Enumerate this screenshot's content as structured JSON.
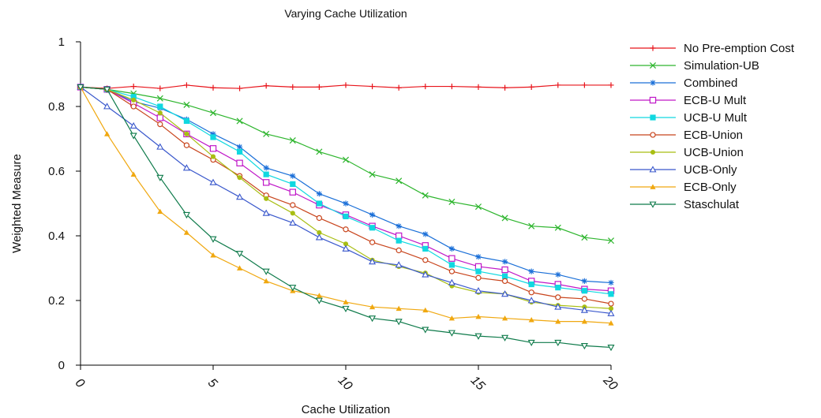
{
  "chart_data": {
    "type": "line",
    "title": "Varying Cache Utilization",
    "xlabel": "Cache Utilization",
    "ylabel": "Weighted Measure",
    "xlim": [
      0,
      20
    ],
    "ylim": [
      0,
      1
    ],
    "x_ticks": [
      "0",
      "5",
      "10",
      "15",
      "20"
    ],
    "y_ticks": [
      "0",
      "0.2",
      "0.4",
      "0.6",
      "0.8",
      "1"
    ],
    "grid": false,
    "legend_position": "top-right",
    "x": [
      0,
      1,
      2,
      3,
      4,
      5,
      6,
      7,
      8,
      9,
      10,
      11,
      12,
      13,
      14,
      15,
      16,
      17,
      18,
      19,
      20
    ],
    "series": [
      {
        "name": "No Pre-emption Cost",
        "color": "#e8141b",
        "marker": "plus",
        "values": [
          0.86,
          0.856,
          0.862,
          0.856,
          0.866,
          0.858,
          0.856,
          0.864,
          0.86,
          0.86,
          0.866,
          0.862,
          0.858,
          0.862,
          0.862,
          0.86,
          0.858,
          0.86,
          0.866,
          0.866,
          0.866
        ]
      },
      {
        "name": "Simulation-UB",
        "color": "#2db52d",
        "marker": "x",
        "values": [
          0.86,
          0.853,
          0.84,
          0.825,
          0.805,
          0.78,
          0.755,
          0.715,
          0.695,
          0.66,
          0.635,
          0.59,
          0.57,
          0.525,
          0.505,
          0.49,
          0.455,
          0.43,
          0.425,
          0.395,
          0.385
        ]
      },
      {
        "name": "Combined",
        "color": "#1a6fd8",
        "marker": "star",
        "values": [
          0.86,
          0.853,
          0.815,
          0.795,
          0.76,
          0.715,
          0.675,
          0.61,
          0.585,
          0.53,
          0.5,
          0.465,
          0.43,
          0.405,
          0.36,
          0.335,
          0.32,
          0.29,
          0.28,
          0.26,
          0.255
        ]
      },
      {
        "name": "ECB-U Mult",
        "color": "#c018c8",
        "marker": "open-square",
        "values": [
          0.86,
          0.853,
          0.81,
          0.765,
          0.715,
          0.67,
          0.625,
          0.565,
          0.535,
          0.495,
          0.465,
          0.43,
          0.4,
          0.37,
          0.33,
          0.305,
          0.295,
          0.26,
          0.25,
          0.235,
          0.23
        ]
      },
      {
        "name": "UCB-U Mult",
        "color": "#10d8e0",
        "marker": "filled-square",
        "values": [
          0.86,
          0.853,
          0.83,
          0.8,
          0.755,
          0.705,
          0.66,
          0.59,
          0.56,
          0.5,
          0.46,
          0.425,
          0.385,
          0.36,
          0.31,
          0.29,
          0.275,
          0.25,
          0.24,
          0.23,
          0.22
        ]
      },
      {
        "name": "ECB-Union",
        "color": "#c8441c",
        "marker": "open-circle",
        "values": [
          0.86,
          0.853,
          0.8,
          0.745,
          0.68,
          0.635,
          0.585,
          0.525,
          0.495,
          0.455,
          0.42,
          0.38,
          0.355,
          0.325,
          0.29,
          0.27,
          0.26,
          0.225,
          0.21,
          0.205,
          0.19
        ]
      },
      {
        "name": "UCB-Union",
        "color": "#a8be12",
        "marker": "filled-circle",
        "values": [
          0.86,
          0.853,
          0.82,
          0.78,
          0.715,
          0.645,
          0.58,
          0.515,
          0.47,
          0.41,
          0.375,
          0.325,
          0.305,
          0.285,
          0.245,
          0.225,
          0.22,
          0.195,
          0.185,
          0.18,
          0.175
        ]
      },
      {
        "name": "UCB-Only",
        "color": "#3a58cc",
        "marker": "open-triangle",
        "values": [
          0.86,
          0.8,
          0.74,
          0.675,
          0.61,
          0.565,
          0.52,
          0.47,
          0.44,
          0.395,
          0.36,
          0.32,
          0.31,
          0.28,
          0.255,
          0.23,
          0.22,
          0.2,
          0.18,
          0.17,
          0.16
        ]
      },
      {
        "name": "ECB-Only",
        "color": "#f0a810",
        "marker": "filled-triangle",
        "values": [
          0.86,
          0.715,
          0.59,
          0.475,
          0.41,
          0.34,
          0.3,
          0.26,
          0.23,
          0.215,
          0.195,
          0.18,
          0.175,
          0.17,
          0.145,
          0.15,
          0.145,
          0.14,
          0.135,
          0.135,
          0.13
        ]
      },
      {
        "name": "Staschulat",
        "color": "#0e7a4a",
        "marker": "open-triangle-down",
        "values": [
          0.86,
          0.853,
          0.71,
          0.58,
          0.465,
          0.39,
          0.345,
          0.29,
          0.24,
          0.2,
          0.175,
          0.145,
          0.135,
          0.11,
          0.1,
          0.09,
          0.085,
          0.07,
          0.07,
          0.06,
          0.055
        ]
      }
    ]
  }
}
